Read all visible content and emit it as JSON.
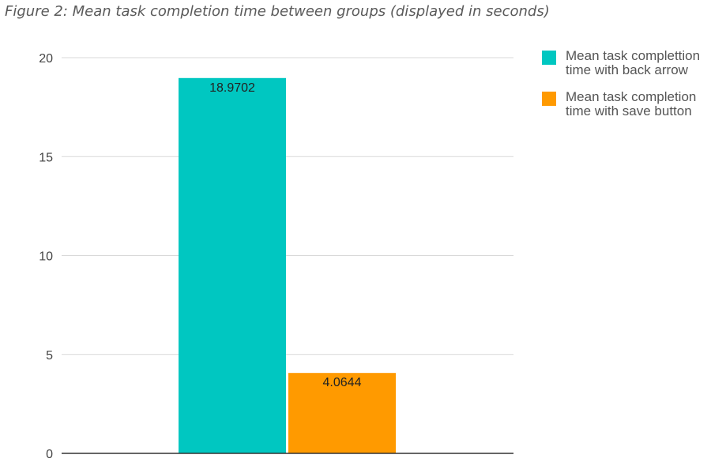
{
  "figure": {
    "caption": "Figure 2: Mean task completion time between groups (displayed in seconds)"
  },
  "colors": {
    "series_back_arrow": "#00c7c1",
    "series_save_button": "#ff9a00",
    "gridline": "#d9d9d9",
    "axis": "#333333"
  },
  "chart_data": {
    "type": "bar",
    "categories": [
      ""
    ],
    "series": [
      {
        "name": "Mean task complettion time with back arrow",
        "values": [
          18.9702
        ]
      },
      {
        "name": "Mean task completion time with save button",
        "values": [
          4.0644
        ]
      }
    ],
    "data_labels": [
      "18.9702",
      "4.0644"
    ],
    "title": "",
    "xlabel": "",
    "ylabel": "",
    "ylim": [
      0,
      20
    ],
    "yticks": [
      0,
      5,
      10,
      15,
      20
    ],
    "ytick_labels": [
      "0",
      "5",
      "10",
      "15",
      "20"
    ],
    "grid": true,
    "legend_position": "right"
  },
  "legend": {
    "items": [
      {
        "line1": "Mean task complettion",
        "line2": "time with back arrow"
      },
      {
        "line1": "Mean task completion",
        "line2": "time with save button"
      }
    ]
  }
}
